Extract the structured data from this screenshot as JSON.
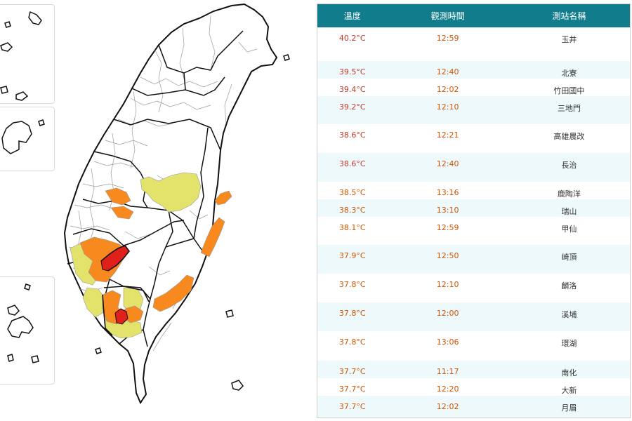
{
  "table": {
    "headers": {
      "temperature": "溫度",
      "time": "觀測時間",
      "station": "測站名稱"
    },
    "rows": [
      {
        "temp": "40.2°C",
        "time": "12:59",
        "station": "玉井"
      },
      {
        "temp": "39.5°C",
        "time": "12:40",
        "station": "北寮"
      },
      {
        "temp": "39.4°C",
        "time": "12:02",
        "station": "竹田國中"
      },
      {
        "temp": "39.2°C",
        "time": "12:10",
        "station": "三地門"
      },
      {
        "temp": "38.6°C",
        "time": "12:21",
        "station": "高雄農改"
      },
      {
        "temp": "38.6°C",
        "time": "12:40",
        "station": "長治"
      },
      {
        "temp": "38.5°C",
        "time": "13:16",
        "station": "鹿陶洋"
      },
      {
        "temp": "38.3°C",
        "time": "13:10",
        "station": "瑞山"
      },
      {
        "temp": "38.1°C",
        "time": "12:59",
        "station": "甲仙"
      },
      {
        "temp": "37.9°C",
        "time": "12:50",
        "station": "崎頂"
      },
      {
        "temp": "37.8°C",
        "time": "12:10",
        "station": "麟洛"
      },
      {
        "temp": "37.8°C",
        "time": "12:00",
        "station": "溪埔"
      },
      {
        "temp": "37.8°C",
        "time": "13:06",
        "station": "環湖"
      },
      {
        "temp": "37.7°C",
        "time": "11:17",
        "station": "南化"
      },
      {
        "temp": "37.7°C",
        "time": "12:20",
        "station": "大新"
      },
      {
        "temp": "37.7°C",
        "time": "12:02",
        "station": "月眉"
      }
    ]
  },
  "map": {
    "colors": {
      "red": "#e0201b",
      "orange": "#f7891f",
      "yellow": "#e3e36b",
      "border": "#111111",
      "district": "#9a9a9a"
    }
  }
}
